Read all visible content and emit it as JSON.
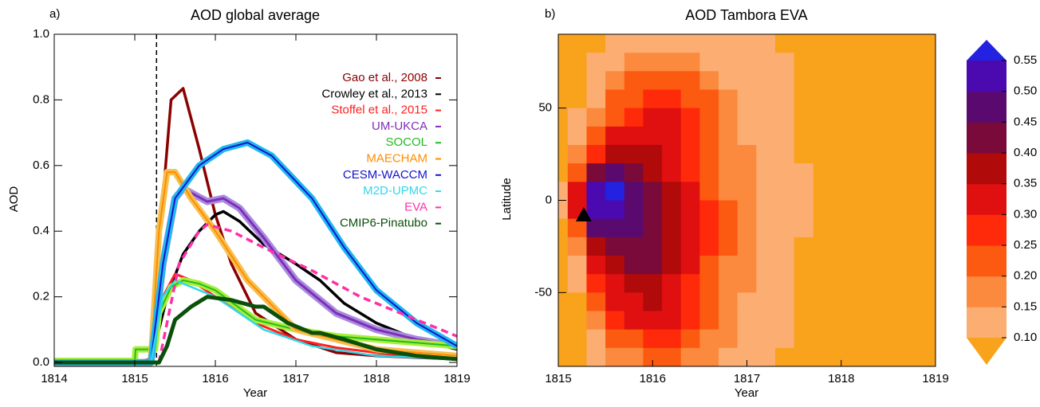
{
  "chart_data": [
    {
      "type": "line",
      "panel_label": "a)",
      "title": "AOD  global average",
      "x_label": "Year",
      "y_label": "AOD",
      "xlim": [
        1814,
        1819
      ],
      "xticks": [
        1814,
        1815,
        1816,
        1817,
        1818,
        1819
      ],
      "ylim": [
        -0.012,
        1.0
      ],
      "yticks": [
        {
          "value": 0,
          "label": "0.0"
        },
        {
          "value": 0.2,
          "label": "0.2"
        },
        {
          "value": 0.4,
          "label": "0.4"
        },
        {
          "value": 0.6,
          "label": "0.6"
        },
        {
          "value": 0.8,
          "label": "0.8"
        },
        {
          "value": 1,
          "label": "1.0"
        }
      ],
      "vline": 1815.27,
      "series": [
        {
          "name": "Gao et al., 2008",
          "color": "#8b0000",
          "width": 3.5,
          "x": [
            1814,
            1815,
            1815.2,
            1815.35,
            1815.45,
            1815.6,
            1815.8,
            1816,
            1816.2,
            1816.5,
            1817,
            1817.5,
            1818,
            1819
          ],
          "values": [
            0,
            0,
            0.01,
            0.5,
            0.8,
            0.835,
            0.65,
            0.45,
            0.3,
            0.15,
            0.07,
            0.03,
            0.02,
            0.01
          ]
        },
        {
          "name": "Crowley et al., 2013",
          "color": "#000000",
          "width": 3.5,
          "x": [
            1814,
            1815.2,
            1815.4,
            1815.6,
            1815.8,
            1816,
            1816.1,
            1816.3,
            1816.6,
            1817,
            1817.3,
            1817.6,
            1818,
            1818.5,
            1819
          ],
          "values": [
            0,
            0,
            0.2,
            0.33,
            0.4,
            0.45,
            0.46,
            0.43,
            0.36,
            0.3,
            0.25,
            0.18,
            0.12,
            0.07,
            0.04
          ]
        },
        {
          "name": "Stoffel et al., 2015",
          "color": "#ff2020",
          "width": 3,
          "x": [
            1814,
            1815.2,
            1815.35,
            1815.5,
            1815.7,
            1816,
            1816.5,
            1817,
            1817.5,
            1818,
            1819
          ],
          "values": [
            -0.005,
            -0.005,
            0.2,
            0.27,
            0.25,
            0.2,
            0.12,
            0.07,
            0.045,
            0.03,
            0.01
          ]
        },
        {
          "name": "UM-UKCA",
          "color": "#7f2fb5",
          "width": 3,
          "band": "#a98be0",
          "x": [
            1814,
            1815.2,
            1815.35,
            1815.5,
            1815.6,
            1815.9,
            1816.1,
            1816.3,
            1816.6,
            1817,
            1817.5,
            1818,
            1818.5,
            1819
          ],
          "values": [
            0,
            0,
            0.3,
            0.5,
            0.53,
            0.49,
            0.5,
            0.47,
            0.38,
            0.25,
            0.15,
            0.1,
            0.07,
            0.05
          ]
        },
        {
          "name": "SOCOL",
          "color": "#22bb22",
          "width": 2,
          "band": "#a8ee3a",
          "x": [
            1814,
            1815,
            1815.01,
            1815.25,
            1815.3,
            1815.45,
            1815.6,
            1815.8,
            1816,
            1816.5,
            1817,
            1817.5,
            1818,
            1819
          ],
          "values": [
            0.005,
            0.005,
            0.04,
            0.04,
            0.15,
            0.23,
            0.25,
            0.24,
            0.22,
            0.13,
            0.1,
            0.08,
            0.07,
            0.05
          ]
        },
        {
          "name": "MAECHAM",
          "color": "#ff8c00",
          "width": 2,
          "band": "#f5c050",
          "x": [
            1814,
            1815.2,
            1815.3,
            1815.4,
            1815.5,
            1815.7,
            1816,
            1816.4,
            1817,
            1818,
            1819
          ],
          "values": [
            0,
            0,
            0.4,
            0.58,
            0.58,
            0.5,
            0.4,
            0.25,
            0.1,
            0.04,
            0.02
          ]
        },
        {
          "name": "CESM-WACCM",
          "color": "#1414c8",
          "width": 2,
          "band": "#1eb8f0",
          "x": [
            1814,
            1815.2,
            1815.35,
            1815.5,
            1815.8,
            1816.1,
            1816.4,
            1816.7,
            1817.2,
            1817.6,
            1818,
            1818.5,
            1819
          ],
          "values": [
            0,
            0,
            0.3,
            0.5,
            0.6,
            0.65,
            0.67,
            0.63,
            0.5,
            0.35,
            0.22,
            0.12,
            0.05
          ]
        },
        {
          "name": "M2D-UPMC",
          "color": "#30d8e8",
          "width": 2.5,
          "x": [
            1814,
            1815.2,
            1815.35,
            1815.5,
            1816,
            1816.6,
            1817.2,
            1818,
            1819
          ],
          "values": [
            0,
            0,
            0.2,
            0.25,
            0.2,
            0.1,
            0.05,
            0.02,
            0.01
          ]
        },
        {
          "name": "EVA",
          "color": "#ff2fa8",
          "width": 3.5,
          "dash": true,
          "x": [
            1815.3,
            1815.55,
            1815.8,
            1815.9,
            1816.2,
            1816.6,
            1817.2,
            1817.8,
            1818.4,
            1819
          ],
          "values": [
            0,
            0.3,
            0.4,
            0.42,
            0.4,
            0.35,
            0.28,
            0.2,
            0.14,
            0.08
          ]
        },
        {
          "name": "CMIP6-Pinatubo",
          "color": "#0a500a",
          "width": 5,
          "x": [
            1814,
            1815.3,
            1815.4,
            1815.5,
            1815.7,
            1815.9,
            1816.2,
            1816.5,
            1816.6,
            1816.9,
            1817.2,
            1817.3,
            1817.6,
            1818,
            1818.5,
            1819
          ],
          "values": [
            0,
            0,
            0.05,
            0.13,
            0.17,
            0.2,
            0.19,
            0.17,
            0.17,
            0.12,
            0.09,
            0.09,
            0.07,
            0.04,
            0.02,
            0.01
          ]
        }
      ]
    },
    {
      "type": "contour",
      "panel_label": "b)",
      "title": "AOD Tambora EVA",
      "x_label": "Year",
      "y_label": "Latitude",
      "xlim": [
        1815,
        1819
      ],
      "xticks": [
        1815,
        1816,
        1817,
        1818,
        1819
      ],
      "ylim": [
        -90,
        90
      ],
      "yticks": [
        -50,
        0,
        50
      ],
      "marker": {
        "x": 1815.27,
        "y": -8
      },
      "x": [
        1815.0,
        1815.2,
        1815.4,
        1815.6,
        1815.8,
        1816.0,
        1816.2,
        1816.4,
        1816.6,
        1816.8,
        1817.0,
        1817.2,
        1817.4,
        1817.6
      ],
      "y": [
        85,
        75,
        65,
        55,
        45,
        35,
        25,
        15,
        5,
        -5,
        -15,
        -25,
        -35,
        -45,
        -55,
        -65,
        -75,
        -85
      ],
      "z": [
        [
          0.05,
          0.05,
          0.05,
          0.05,
          0.05,
          0.06,
          0.07,
          0.09,
          0.12,
          0.12,
          0.09,
          0.07,
          0.06,
          0.05,
          0.05,
          0.05,
          0.05,
          0.05
        ],
        [
          0.06,
          0.07,
          0.08,
          0.09,
          0.1,
          0.12,
          0.15,
          0.22,
          0.32,
          0.32,
          0.22,
          0.15,
          0.12,
          0.1,
          0.09,
          0.08,
          0.07,
          0.06
        ],
        [
          0.08,
          0.1,
          0.12,
          0.14,
          0.17,
          0.2,
          0.28,
          0.42,
          0.53,
          0.53,
          0.45,
          0.38,
          0.3,
          0.25,
          0.2,
          0.16,
          0.12,
          0.1
        ],
        [
          0.1,
          0.13,
          0.16,
          0.2,
          0.24,
          0.3,
          0.38,
          0.47,
          0.56,
          0.54,
          0.48,
          0.44,
          0.38,
          0.34,
          0.3,
          0.26,
          0.2,
          0.15
        ],
        [
          0.11,
          0.15,
          0.2,
          0.24,
          0.28,
          0.32,
          0.37,
          0.42,
          0.47,
          0.47,
          0.46,
          0.43,
          0.4,
          0.37,
          0.34,
          0.3,
          0.24,
          0.18
        ],
        [
          0.12,
          0.17,
          0.22,
          0.28,
          0.31,
          0.33,
          0.35,
          0.38,
          0.41,
          0.43,
          0.43,
          0.42,
          0.4,
          0.38,
          0.36,
          0.32,
          0.26,
          0.2
        ],
        [
          0.12,
          0.17,
          0.23,
          0.28,
          0.3,
          0.31,
          0.32,
          0.34,
          0.36,
          0.38,
          0.38,
          0.37,
          0.36,
          0.34,
          0.32,
          0.3,
          0.26,
          0.21
        ],
        [
          0.11,
          0.15,
          0.2,
          0.24,
          0.26,
          0.27,
          0.28,
          0.29,
          0.3,
          0.31,
          0.31,
          0.31,
          0.3,
          0.29,
          0.27,
          0.25,
          0.22,
          0.19
        ],
        [
          0.1,
          0.13,
          0.17,
          0.2,
          0.21,
          0.22,
          0.23,
          0.24,
          0.24,
          0.25,
          0.25,
          0.25,
          0.24,
          0.23,
          0.22,
          0.2,
          0.18,
          0.16
        ],
        [
          0.1,
          0.12,
          0.14,
          0.16,
          0.17,
          0.18,
          0.18,
          0.19,
          0.19,
          0.2,
          0.2,
          0.2,
          0.19,
          0.18,
          0.17,
          0.16,
          0.15,
          0.14
        ],
        [
          0.1,
          0.11,
          0.12,
          0.13,
          0.14,
          0.14,
          0.15,
          0.15,
          0.16,
          0.16,
          0.16,
          0.16,
          0.15,
          0.15,
          0.14,
          0.13,
          0.12,
          0.12
        ],
        [
          0.1,
          0.1,
          0.11,
          0.11,
          0.12,
          0.12,
          0.12,
          0.12,
          0.13,
          0.13,
          0.13,
          0.13,
          0.12,
          0.12,
          0.12,
          0.11,
          0.11,
          0.1
        ],
        [
          0.09,
          0.1,
          0.1,
          0.1,
          0.1,
          0.1,
          0.11,
          0.11,
          0.11,
          0.11,
          0.11,
          0.11,
          0.11,
          0.1,
          0.1,
          0.1,
          0.1,
          0.09
        ],
        [
          0.08,
          0.09,
          0.09,
          0.09,
          0.09,
          0.09,
          0.09,
          0.1,
          0.1,
          0.1,
          0.1,
          0.09,
          0.09,
          0.09,
          0.09,
          0.09,
          0.09,
          0.08
        ]
      ],
      "levels": [
        {
          "value": 0.1,
          "label": "0.10"
        },
        {
          "value": 0.15,
          "label": "0.15"
        },
        {
          "value": 0.2,
          "label": "0.20"
        },
        {
          "value": 0.25,
          "label": "0.25"
        },
        {
          "value": 0.3,
          "label": "0.30"
        },
        {
          "value": 0.35,
          "label": "0.35"
        },
        {
          "value": 0.4,
          "label": "0.40"
        },
        {
          "value": 0.45,
          "label": "0.45"
        },
        {
          "value": 0.5,
          "label": "0.50"
        },
        {
          "value": 0.55,
          "label": "0.55"
        }
      ],
      "colors": [
        "#f9a21b",
        "#fcae72",
        "#fb8a3e",
        "#fc5a10",
        "#ff2a0a",
        "#e01010",
        "#b00a0a",
        "#7a0a3a",
        "#5a0a6e",
        "#4a0ab0",
        "#2222e0"
      ]
    }
  ]
}
